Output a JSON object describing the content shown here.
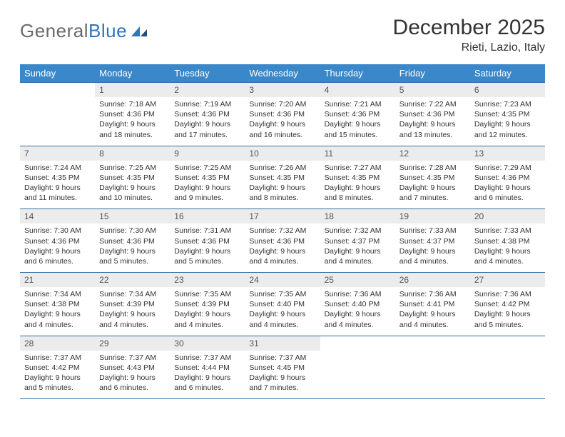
{
  "logo": {
    "text1": "General",
    "text2": "Blue"
  },
  "title": "December 2025",
  "location": "Rieti, Lazio, Italy",
  "colors": {
    "header_bg": "#3a87c9",
    "header_text": "#ffffff",
    "daynum_bg": "#ececec",
    "row_border": "#2f6fa8",
    "logo_gray": "#6a6a6a",
    "logo_blue": "#2f76bb"
  },
  "day_headers": [
    "Sunday",
    "Monday",
    "Tuesday",
    "Wednesday",
    "Thursday",
    "Friday",
    "Saturday"
  ],
  "weeks": [
    [
      {
        "n": "",
        "sr": "",
        "ss": "",
        "dl": ""
      },
      {
        "n": "1",
        "sr": "Sunrise: 7:18 AM",
        "ss": "Sunset: 4:36 PM",
        "dl": "Daylight: 9 hours and 18 minutes."
      },
      {
        "n": "2",
        "sr": "Sunrise: 7:19 AM",
        "ss": "Sunset: 4:36 PM",
        "dl": "Daylight: 9 hours and 17 minutes."
      },
      {
        "n": "3",
        "sr": "Sunrise: 7:20 AM",
        "ss": "Sunset: 4:36 PM",
        "dl": "Daylight: 9 hours and 16 minutes."
      },
      {
        "n": "4",
        "sr": "Sunrise: 7:21 AM",
        "ss": "Sunset: 4:36 PM",
        "dl": "Daylight: 9 hours and 15 minutes."
      },
      {
        "n": "5",
        "sr": "Sunrise: 7:22 AM",
        "ss": "Sunset: 4:36 PM",
        "dl": "Daylight: 9 hours and 13 minutes."
      },
      {
        "n": "6",
        "sr": "Sunrise: 7:23 AM",
        "ss": "Sunset: 4:35 PM",
        "dl": "Daylight: 9 hours and 12 minutes."
      }
    ],
    [
      {
        "n": "7",
        "sr": "Sunrise: 7:24 AM",
        "ss": "Sunset: 4:35 PM",
        "dl": "Daylight: 9 hours and 11 minutes."
      },
      {
        "n": "8",
        "sr": "Sunrise: 7:25 AM",
        "ss": "Sunset: 4:35 PM",
        "dl": "Daylight: 9 hours and 10 minutes."
      },
      {
        "n": "9",
        "sr": "Sunrise: 7:25 AM",
        "ss": "Sunset: 4:35 PM",
        "dl": "Daylight: 9 hours and 9 minutes."
      },
      {
        "n": "10",
        "sr": "Sunrise: 7:26 AM",
        "ss": "Sunset: 4:35 PM",
        "dl": "Daylight: 9 hours and 8 minutes."
      },
      {
        "n": "11",
        "sr": "Sunrise: 7:27 AM",
        "ss": "Sunset: 4:35 PM",
        "dl": "Daylight: 9 hours and 8 minutes."
      },
      {
        "n": "12",
        "sr": "Sunrise: 7:28 AM",
        "ss": "Sunset: 4:35 PM",
        "dl": "Daylight: 9 hours and 7 minutes."
      },
      {
        "n": "13",
        "sr": "Sunrise: 7:29 AM",
        "ss": "Sunset: 4:36 PM",
        "dl": "Daylight: 9 hours and 6 minutes."
      }
    ],
    [
      {
        "n": "14",
        "sr": "Sunrise: 7:30 AM",
        "ss": "Sunset: 4:36 PM",
        "dl": "Daylight: 9 hours and 6 minutes."
      },
      {
        "n": "15",
        "sr": "Sunrise: 7:30 AM",
        "ss": "Sunset: 4:36 PM",
        "dl": "Daylight: 9 hours and 5 minutes."
      },
      {
        "n": "16",
        "sr": "Sunrise: 7:31 AM",
        "ss": "Sunset: 4:36 PM",
        "dl": "Daylight: 9 hours and 5 minutes."
      },
      {
        "n": "17",
        "sr": "Sunrise: 7:32 AM",
        "ss": "Sunset: 4:36 PM",
        "dl": "Daylight: 9 hours and 4 minutes."
      },
      {
        "n": "18",
        "sr": "Sunrise: 7:32 AM",
        "ss": "Sunset: 4:37 PM",
        "dl": "Daylight: 9 hours and 4 minutes."
      },
      {
        "n": "19",
        "sr": "Sunrise: 7:33 AM",
        "ss": "Sunset: 4:37 PM",
        "dl": "Daylight: 9 hours and 4 minutes."
      },
      {
        "n": "20",
        "sr": "Sunrise: 7:33 AM",
        "ss": "Sunset: 4:38 PM",
        "dl": "Daylight: 9 hours and 4 minutes."
      }
    ],
    [
      {
        "n": "21",
        "sr": "Sunrise: 7:34 AM",
        "ss": "Sunset: 4:38 PM",
        "dl": "Daylight: 9 hours and 4 minutes."
      },
      {
        "n": "22",
        "sr": "Sunrise: 7:34 AM",
        "ss": "Sunset: 4:39 PM",
        "dl": "Daylight: 9 hours and 4 minutes."
      },
      {
        "n": "23",
        "sr": "Sunrise: 7:35 AM",
        "ss": "Sunset: 4:39 PM",
        "dl": "Daylight: 9 hours and 4 minutes."
      },
      {
        "n": "24",
        "sr": "Sunrise: 7:35 AM",
        "ss": "Sunset: 4:40 PM",
        "dl": "Daylight: 9 hours and 4 minutes."
      },
      {
        "n": "25",
        "sr": "Sunrise: 7:36 AM",
        "ss": "Sunset: 4:40 PM",
        "dl": "Daylight: 9 hours and 4 minutes."
      },
      {
        "n": "26",
        "sr": "Sunrise: 7:36 AM",
        "ss": "Sunset: 4:41 PM",
        "dl": "Daylight: 9 hours and 4 minutes."
      },
      {
        "n": "27",
        "sr": "Sunrise: 7:36 AM",
        "ss": "Sunset: 4:42 PM",
        "dl": "Daylight: 9 hours and 5 minutes."
      }
    ],
    [
      {
        "n": "28",
        "sr": "Sunrise: 7:37 AM",
        "ss": "Sunset: 4:42 PM",
        "dl": "Daylight: 9 hours and 5 minutes."
      },
      {
        "n": "29",
        "sr": "Sunrise: 7:37 AM",
        "ss": "Sunset: 4:43 PM",
        "dl": "Daylight: 9 hours and 6 minutes."
      },
      {
        "n": "30",
        "sr": "Sunrise: 7:37 AM",
        "ss": "Sunset: 4:44 PM",
        "dl": "Daylight: 9 hours and 6 minutes."
      },
      {
        "n": "31",
        "sr": "Sunrise: 7:37 AM",
        "ss": "Sunset: 4:45 PM",
        "dl": "Daylight: 9 hours and 7 minutes."
      },
      {
        "n": "",
        "sr": "",
        "ss": "",
        "dl": ""
      },
      {
        "n": "",
        "sr": "",
        "ss": "",
        "dl": ""
      },
      {
        "n": "",
        "sr": "",
        "ss": "",
        "dl": ""
      }
    ]
  ]
}
